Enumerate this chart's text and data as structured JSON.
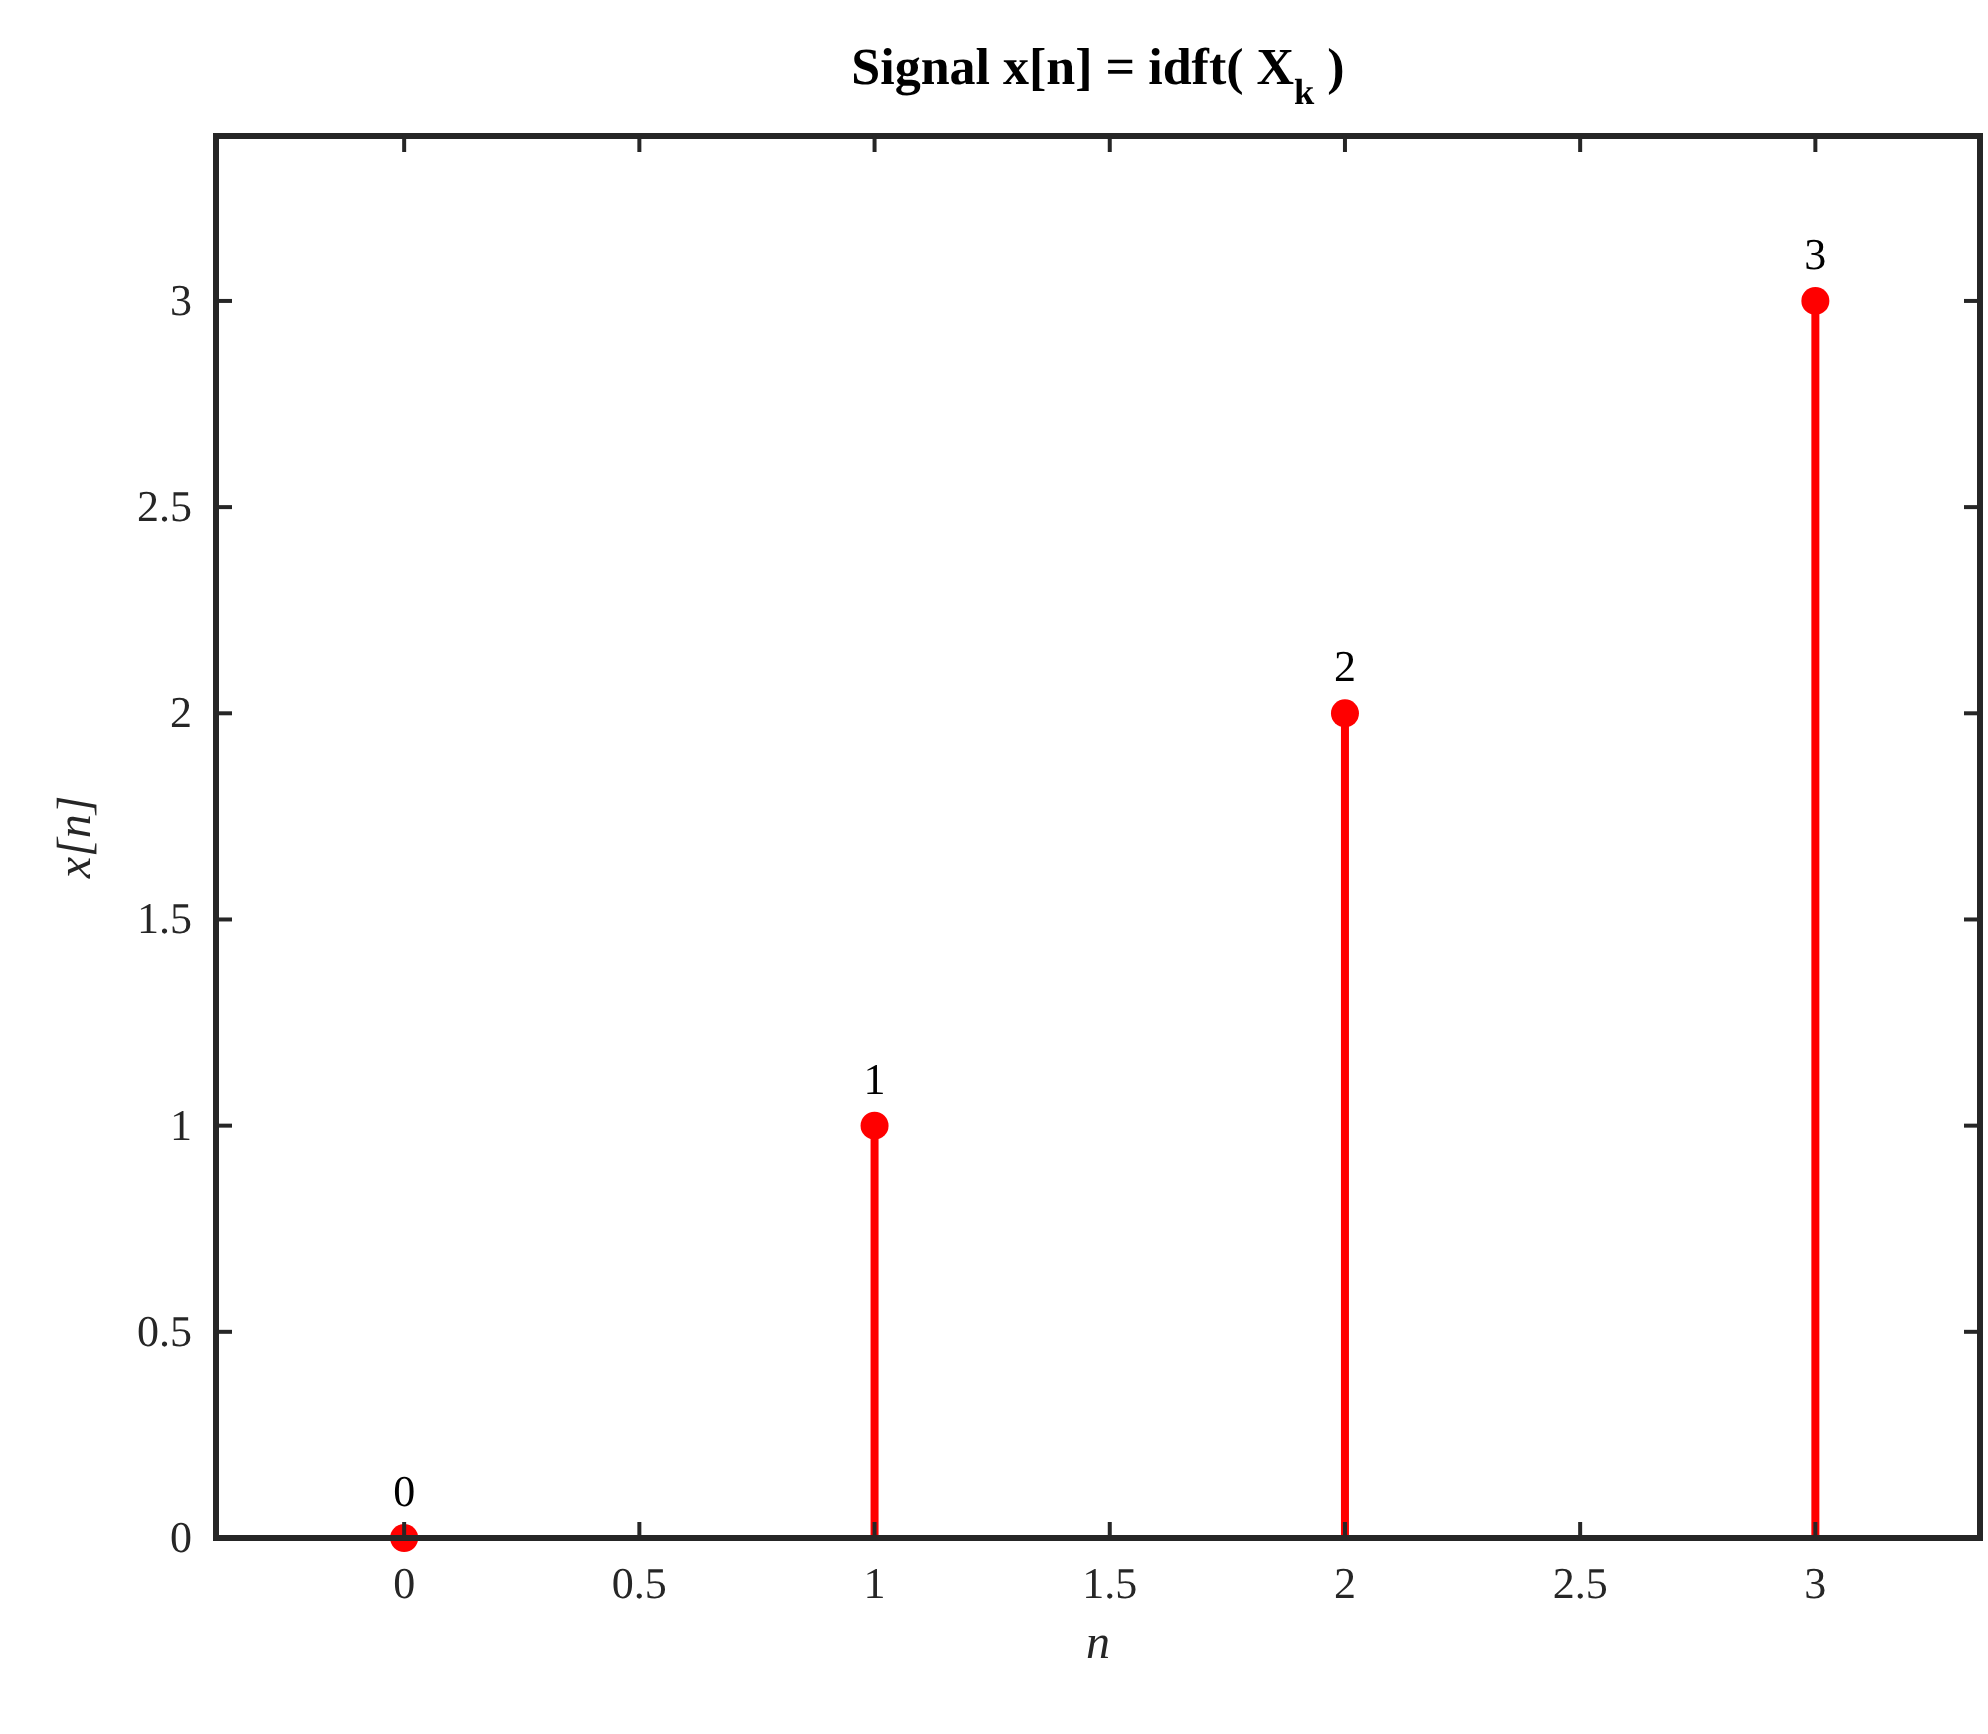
{
  "chart_data": {
    "type": "lollipop",
    "title": "Signal x[n] = idft( X$_{k}$ )",
    "xlabel": "n",
    "ylabel": "x[n]",
    "x": [
      0,
      1,
      2,
      3
    ],
    "series": [
      {
        "color": "#ff0000",
        "values": [
          0,
          1,
          2,
          3
        ]
      }
    ],
    "data_labels": true,
    "marker": "circle",
    "xlim": [
      -0.4,
      3.35
    ],
    "xticks": [
      0,
      0.5,
      1,
      1.5,
      2,
      2.5,
      3
    ],
    "ylim": [
      0,
      3.4
    ],
    "yticks": [
      0,
      0.5,
      1,
      1.5,
      2,
      2.5,
      3
    ],
    "grid": false
  }
}
